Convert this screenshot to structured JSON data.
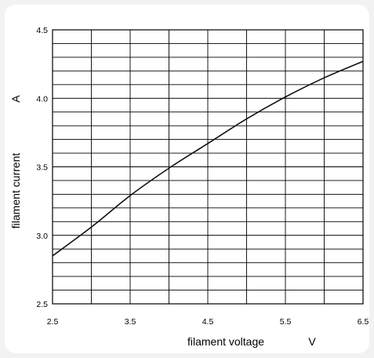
{
  "chart_data": {
    "type": "line",
    "xlabel": "filament voltage",
    "xunit": "V",
    "ylabel": "filament current",
    "yunit": "A",
    "xlim": [
      2.5,
      6.5
    ],
    "ylim": [
      2.5,
      4.5
    ],
    "x_tick_labels": [
      "2.5",
      "3.5",
      "4.5",
      "5.5",
      "6.5"
    ],
    "y_tick_labels": [
      "2.5",
      "3.0",
      "3.5",
      "4.0",
      "4.5"
    ],
    "grid": true,
    "series": [
      {
        "x": [
          2.5,
          3.0,
          3.5,
          4.0,
          4.5,
          5.0,
          5.5,
          6.0,
          6.5
        ],
        "y": [
          2.85,
          3.06,
          3.29,
          3.49,
          3.67,
          3.85,
          4.01,
          4.15,
          4.27
        ]
      }
    ]
  }
}
